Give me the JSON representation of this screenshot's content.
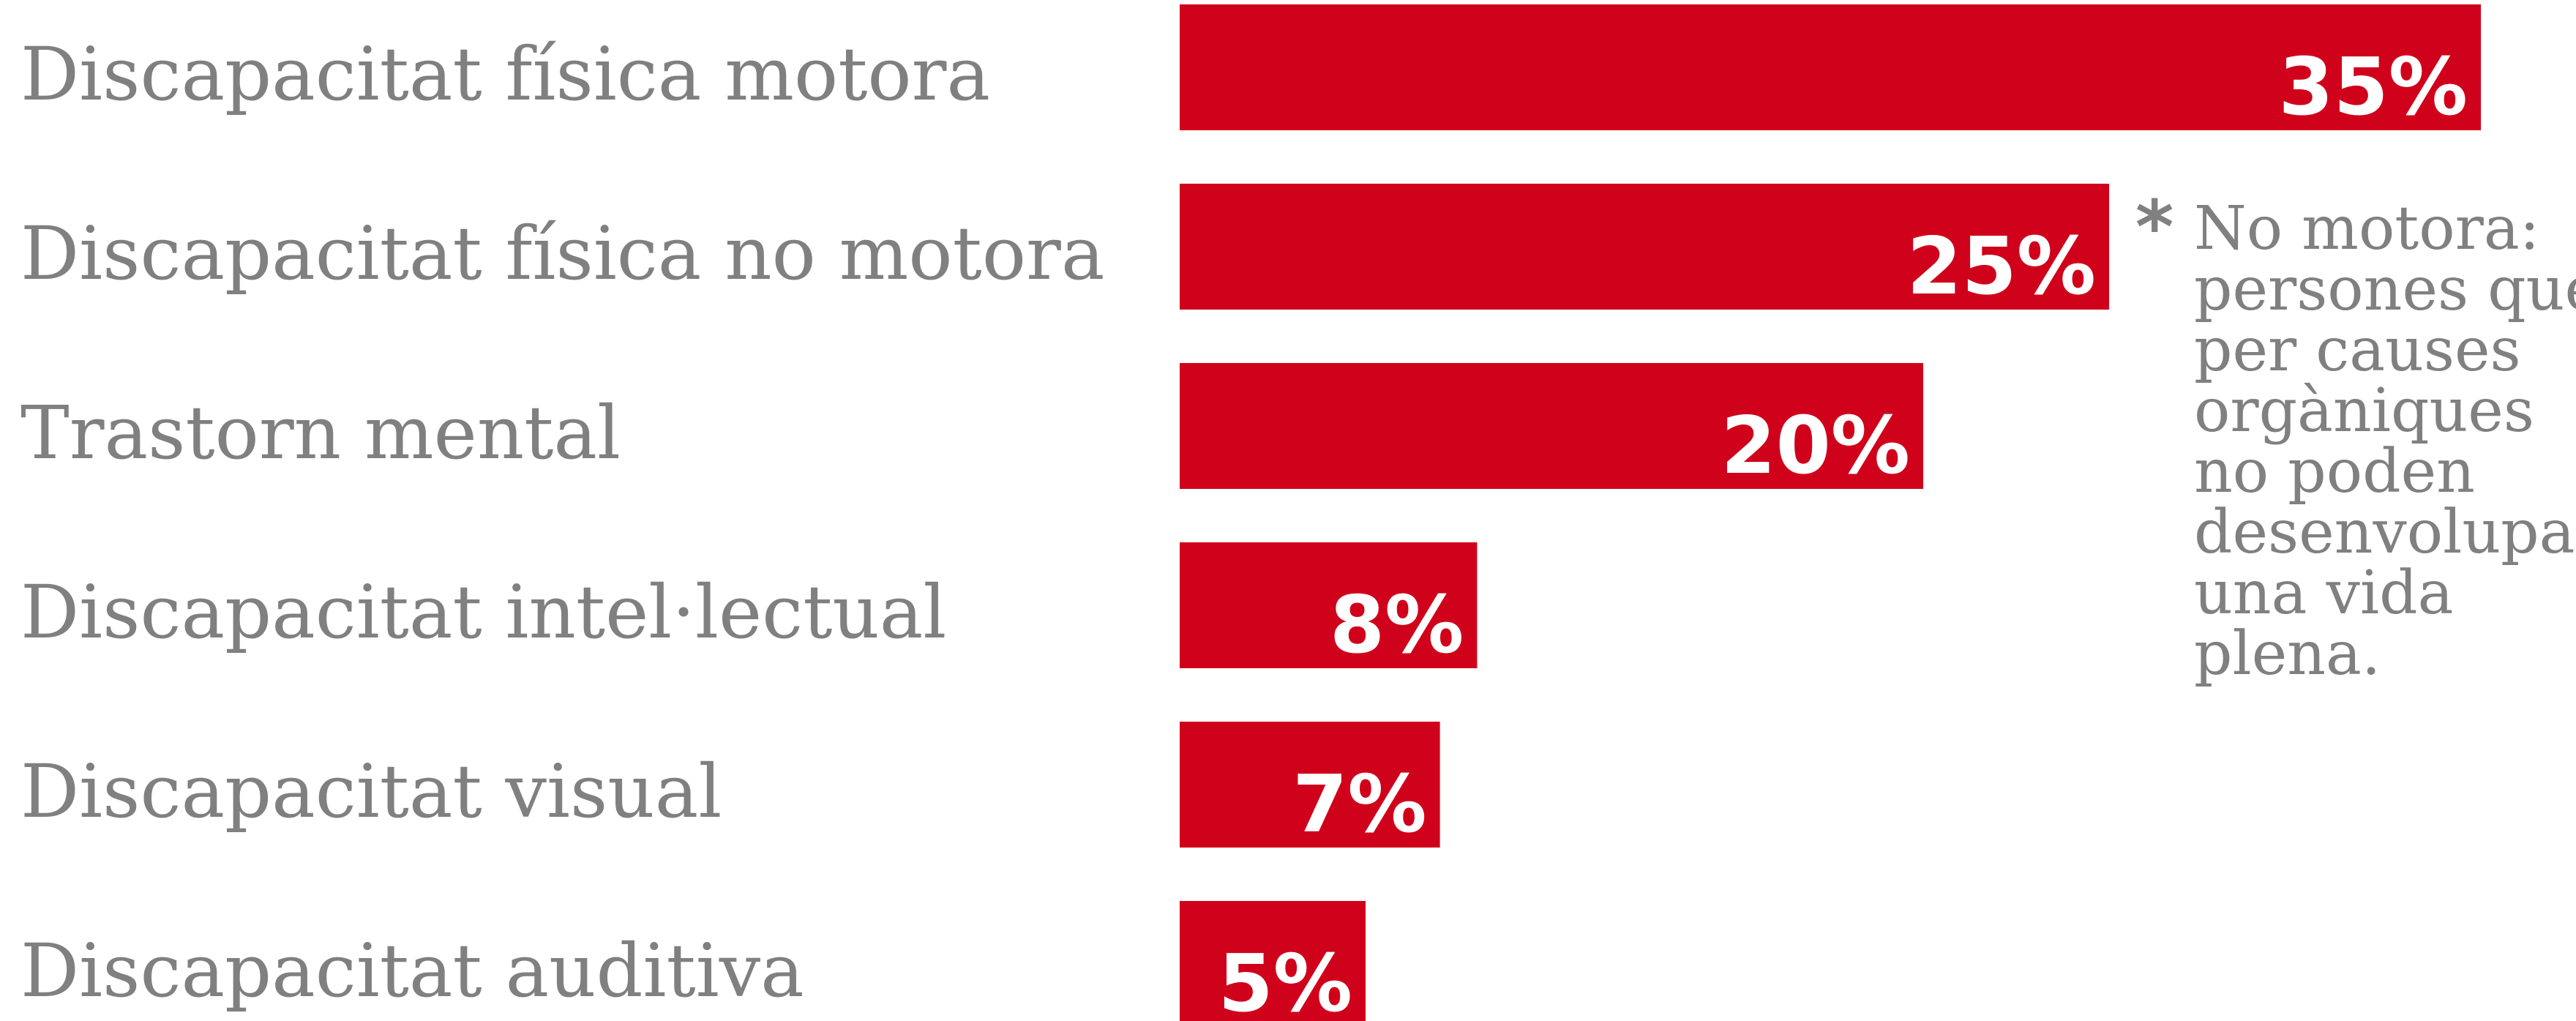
{
  "chart_data": {
    "type": "bar",
    "orientation": "horizontal",
    "categories": [
      "Discapacitat física motora",
      "Discapacitat física no motora",
      "Trastorn mental",
      "Discapacitat intel·lectual",
      "Discapacitat visual",
      "Discapacitat auditiva"
    ],
    "values": [
      35,
      25,
      20,
      8,
      7,
      5
    ],
    "value_labels": [
      "35%",
      "25%",
      "20%",
      "8%",
      "7%",
      "5%"
    ],
    "unit": "%",
    "bar_color": "#d0021b",
    "grid": false,
    "legend": "none"
  },
  "note": {
    "marker": "*",
    "lines": [
      "No motora:",
      "persones que",
      "per causes",
      "orgàniques",
      "no poden",
      "desenvolupar",
      "una vida",
      "plena."
    ]
  }
}
